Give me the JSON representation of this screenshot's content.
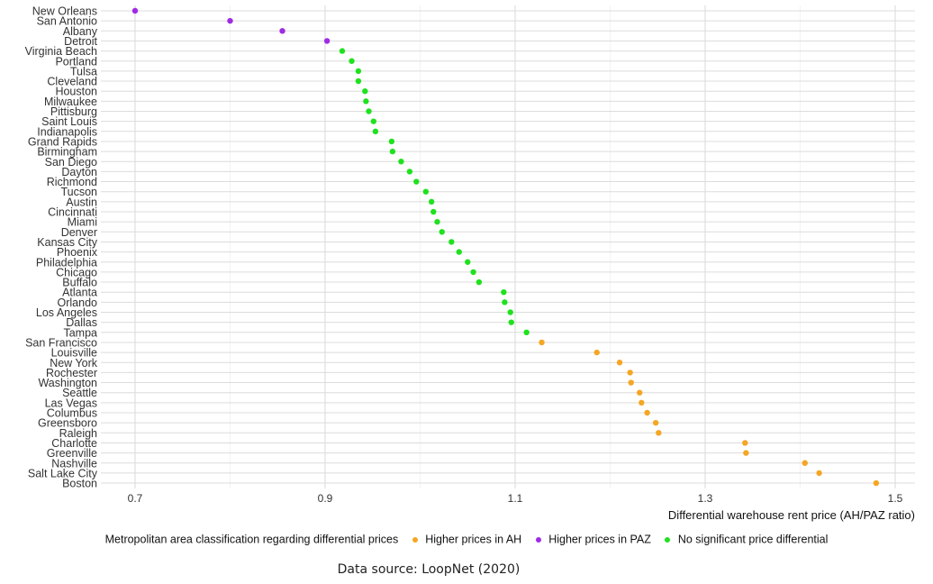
{
  "chart_data": {
    "type": "scatter",
    "xlabel": "Differential warehouse rent price (AH/PAZ ratio)",
    "xticks": [
      0.7,
      0.9,
      1.1,
      1.3,
      1.5
    ],
    "xlim": [
      0.66,
      1.52
    ],
    "grid": true,
    "legend_position": "bottom",
    "legend_title": "Metropolitan area classification regarding differential prices",
    "classes": [
      {
        "key": "AH",
        "name": "Higher prices in AH",
        "color": "#F5A623"
      },
      {
        "key": "PAZ",
        "name": "Higher prices in PAZ",
        "color": "#A02BE4"
      },
      {
        "key": "NS",
        "name": "No significant price differential",
        "color": "#1FE21F"
      }
    ],
    "points": [
      {
        "city": "New Orleans",
        "value": 0.7,
        "class": "PAZ"
      },
      {
        "city": "San Antonio",
        "value": 0.8,
        "class": "PAZ"
      },
      {
        "city": "Albany",
        "value": 0.855,
        "class": "PAZ"
      },
      {
        "city": "Detroit",
        "value": 0.902,
        "class": "PAZ"
      },
      {
        "city": "Virginia Beach",
        "value": 0.918,
        "class": "NS"
      },
      {
        "city": "Portland",
        "value": 0.928,
        "class": "NS"
      },
      {
        "city": "Tulsa",
        "value": 0.935,
        "class": "NS"
      },
      {
        "city": "Cleveland",
        "value": 0.935,
        "class": "NS"
      },
      {
        "city": "Houston",
        "value": 0.942,
        "class": "NS"
      },
      {
        "city": "Milwaukee",
        "value": 0.943,
        "class": "NS"
      },
      {
        "city": "Pittisburg",
        "value": 0.946,
        "class": "NS"
      },
      {
        "city": "Saint Louis",
        "value": 0.951,
        "class": "NS"
      },
      {
        "city": "Indianapolis",
        "value": 0.953,
        "class": "NS"
      },
      {
        "city": "Grand Rapids",
        "value": 0.97,
        "class": "NS"
      },
      {
        "city": "Birmingham",
        "value": 0.971,
        "class": "NS"
      },
      {
        "city": "San Diego",
        "value": 0.98,
        "class": "NS"
      },
      {
        "city": "Dayton",
        "value": 0.989,
        "class": "NS"
      },
      {
        "city": "Richmond",
        "value": 0.996,
        "class": "NS"
      },
      {
        "city": "Tucson",
        "value": 1.006,
        "class": "NS"
      },
      {
        "city": "Austin",
        "value": 1.012,
        "class": "NS"
      },
      {
        "city": "Cincinnati",
        "value": 1.014,
        "class": "NS"
      },
      {
        "city": "Miami",
        "value": 1.018,
        "class": "NS"
      },
      {
        "city": "Denver",
        "value": 1.023,
        "class": "NS"
      },
      {
        "city": "Kansas City",
        "value": 1.033,
        "class": "NS"
      },
      {
        "city": "Phoenix",
        "value": 1.041,
        "class": "NS"
      },
      {
        "city": "Philadelphia",
        "value": 1.05,
        "class": "NS"
      },
      {
        "city": "Chicago",
        "value": 1.056,
        "class": "NS"
      },
      {
        "city": "Buffalo",
        "value": 1.062,
        "class": "NS"
      },
      {
        "city": "Atlanta",
        "value": 1.088,
        "class": "NS"
      },
      {
        "city": "Orlando",
        "value": 1.089,
        "class": "NS"
      },
      {
        "city": "Los Angeles",
        "value": 1.095,
        "class": "NS"
      },
      {
        "city": "Dallas",
        "value": 1.096,
        "class": "NS"
      },
      {
        "city": "Tampa",
        "value": 1.112,
        "class": "NS"
      },
      {
        "city": "San Francisco",
        "value": 1.128,
        "class": "AH"
      },
      {
        "city": "Louisville",
        "value": 1.186,
        "class": "AH"
      },
      {
        "city": "New York",
        "value": 1.21,
        "class": "AH"
      },
      {
        "city": "Rochester",
        "value": 1.221,
        "class": "AH"
      },
      {
        "city": "Washington",
        "value": 1.222,
        "class": "AH"
      },
      {
        "city": "Seattle",
        "value": 1.231,
        "class": "AH"
      },
      {
        "city": "Las Vegas",
        "value": 1.233,
        "class": "AH"
      },
      {
        "city": "Columbus",
        "value": 1.239,
        "class": "AH"
      },
      {
        "city": "Greensboro",
        "value": 1.248,
        "class": "AH"
      },
      {
        "city": "Raleigh",
        "value": 1.251,
        "class": "AH"
      },
      {
        "city": "Charlotte",
        "value": 1.342,
        "class": "AH"
      },
      {
        "city": "Greenville",
        "value": 1.343,
        "class": "AH"
      },
      {
        "city": "Nashville",
        "value": 1.405,
        "class": "AH"
      },
      {
        "city": "Salt Lake City",
        "value": 1.42,
        "class": "AH"
      },
      {
        "city": "Boston",
        "value": 1.48,
        "class": "AH"
      }
    ]
  },
  "source": "Data source: LoopNet (2020)"
}
